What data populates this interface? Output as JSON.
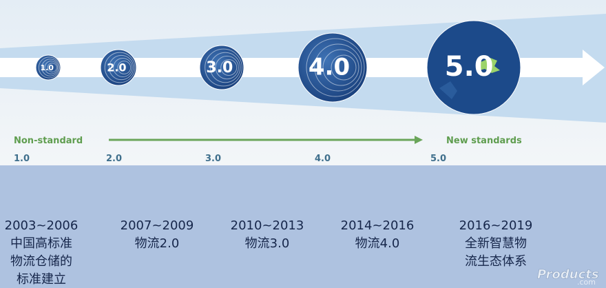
{
  "diagram": {
    "start_label": "Non-standard",
    "end_label": "New standards",
    "stages": [
      {
        "badge": "1.0",
        "scale_label": "1.0",
        "period": "2003~2006",
        "description": [
          "中国高标准",
          "物流仓储的",
          "标准建立"
        ]
      },
      {
        "badge": "2.0",
        "scale_label": "2.0",
        "period": "2007~2009",
        "description": [
          "物流2.0"
        ]
      },
      {
        "badge": "3.0",
        "scale_label": "3.0",
        "period": "2010~2013",
        "description": [
          "物流3.0"
        ]
      },
      {
        "badge": "4.0",
        "scale_label": "4.0",
        "period": "2014~2016",
        "description": [
          "物流4.0"
        ]
      },
      {
        "badge": "5.0",
        "scale_label": "5.0",
        "period": "2016~2019",
        "description": [
          "全新智慧物",
          "流生态体系"
        ]
      }
    ]
  },
  "watermark": {
    "brand": "Products",
    "domain": ".com"
  }
}
